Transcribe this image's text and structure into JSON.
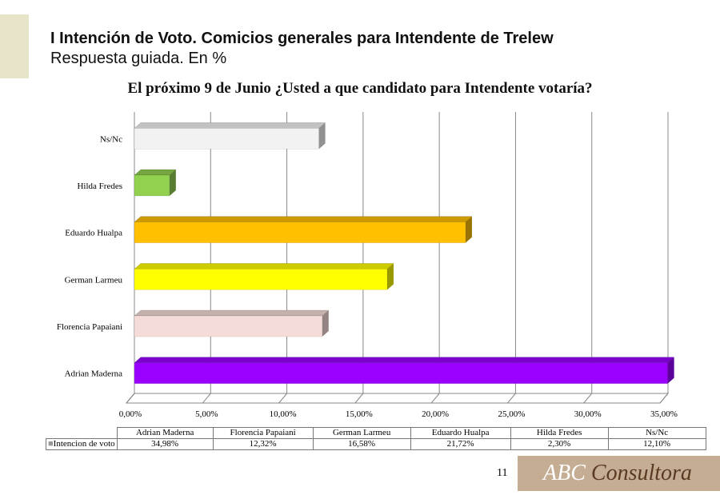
{
  "header": {
    "title": "I Intención de Voto. Comicios generales para Intendente de Trelew",
    "subtitle": "Respuesta guiada. En %"
  },
  "chart_data": {
    "type": "bar",
    "orientation": "horizontal",
    "title": "El próximo 9 de Junio ¿Usted a que candidato para Intendente votaría?",
    "categories": [
      "Adrian Maderna",
      "Florencia Papaiani",
      "German Larmeu",
      "Eduardo Hualpa",
      "Hilda Fredes",
      "Ns/Nc"
    ],
    "series": [
      {
        "name": "Intencion de voto",
        "values": [
          34.98,
          12.32,
          16.58,
          21.72,
          2.3,
          12.1
        ],
        "labels": [
          "34,98%",
          "12,32%",
          "16,58%",
          "21,72%",
          "2,30%",
          "12,10%"
        ]
      }
    ],
    "colors": [
      "#9900ff",
      "#f5dcd8",
      "#ffff00",
      "#ffc000",
      "#92d050",
      "#f2f2f2"
    ],
    "xlim": [
      0,
      35
    ],
    "xticks": [
      "0,00%",
      "5,00%",
      "10,00%",
      "15,00%",
      "20,00%",
      "25,00%",
      "30,00%",
      "35,00%"
    ],
    "grid": true,
    "legend": "data-table-bottom"
  },
  "footer": {
    "page": "11",
    "logo_a": "ABC",
    "logo_b": "Consultora"
  }
}
